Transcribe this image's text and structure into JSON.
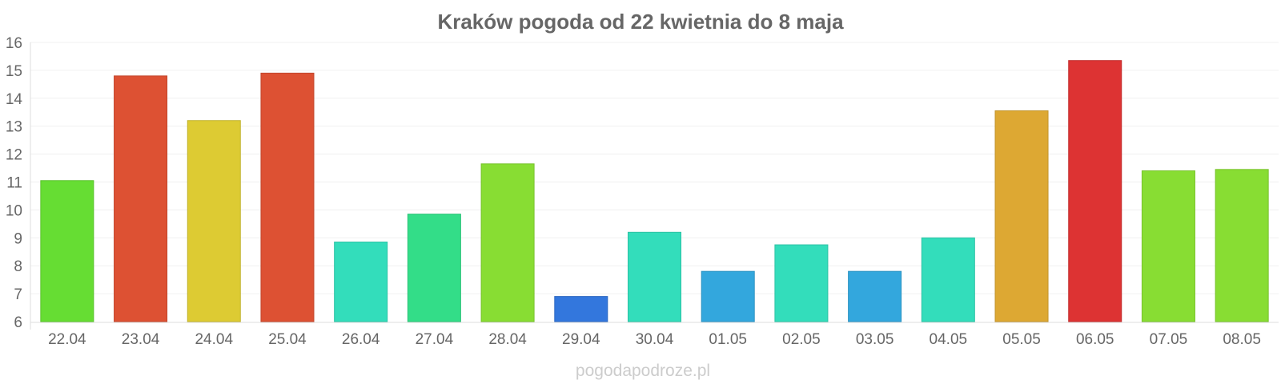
{
  "chart_data": {
    "type": "bar",
    "title": "Kraków pogoda od 22 kwietnia do 8 maja",
    "xlabel": "",
    "ylabel": "",
    "ylim": [
      6,
      16
    ],
    "yticks": [
      6,
      7,
      8,
      9,
      10,
      11,
      12,
      13,
      14,
      15,
      16
    ],
    "grid": true,
    "legend": "none",
    "categories": [
      "22.04",
      "23.04",
      "24.04",
      "25.04",
      "26.04",
      "27.04",
      "28.04",
      "29.04",
      "30.04",
      "01.05",
      "02.05",
      "03.05",
      "04.05",
      "05.05",
      "06.05",
      "07.05",
      "08.05"
    ],
    "values": [
      11.05,
      14.8,
      13.2,
      14.9,
      8.85,
      9.85,
      11.65,
      6.9,
      9.2,
      7.8,
      8.75,
      7.8,
      9.0,
      13.55,
      15.35,
      11.4,
      11.45
    ],
    "colors": [
      "#66dd33",
      "#dd5133",
      "#ddcb33",
      "#dd5133",
      "#33ddbb",
      "#33dd88",
      "#88dd33",
      "#3377dd",
      "#33ddbb",
      "#33a7dd",
      "#33ddbb",
      "#33a7dd",
      "#33ddbb",
      "#dda833",
      "#dd3333",
      "#88dd33",
      "#88dd33"
    ]
  },
  "watermark": "pogodapodroze.pl"
}
